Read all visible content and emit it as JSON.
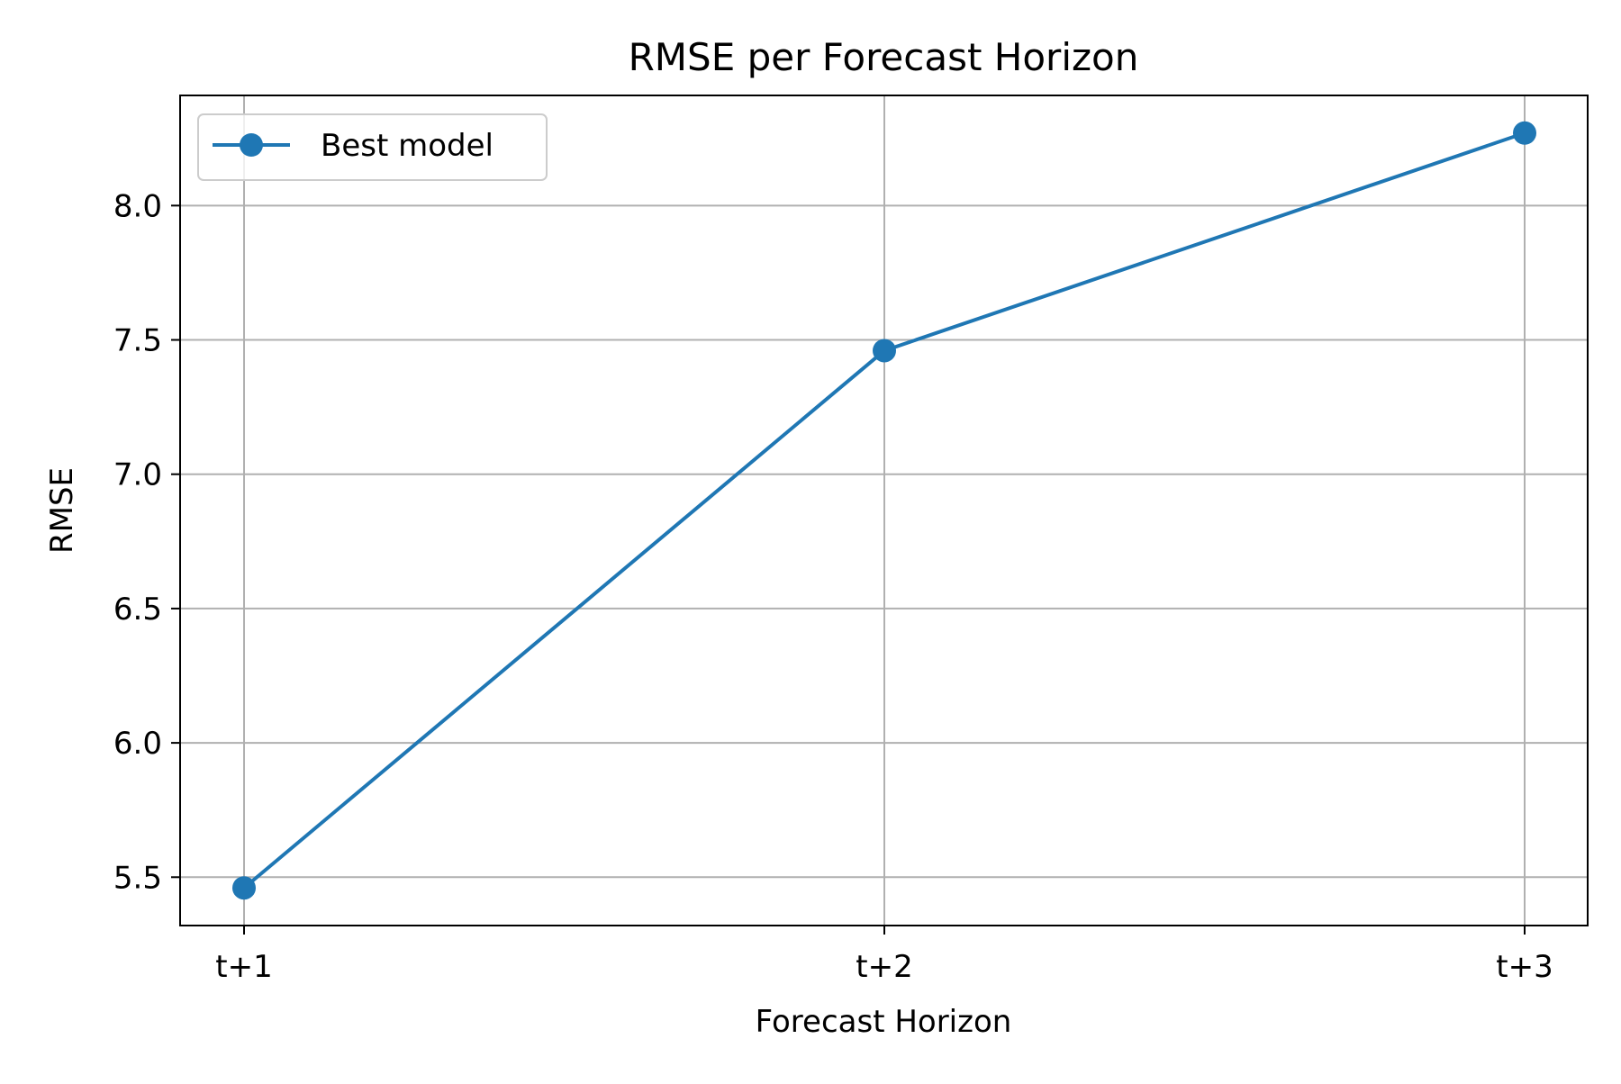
{
  "chart_data": {
    "type": "line",
    "title": "RMSE per Forecast Horizon",
    "xlabel": "Forecast Horizon",
    "ylabel": "RMSE",
    "categories": [
      "t+1",
      "t+2",
      "t+3"
    ],
    "series": [
      {
        "name": "Best model",
        "values": [
          5.46,
          7.46,
          8.27
        ],
        "color": "#1f77b4",
        "marker": "circle"
      }
    ],
    "ylim": [
      5.32,
      8.41
    ],
    "yticks": [
      "5.5",
      "6.0",
      "6.5",
      "7.0",
      "7.5",
      "8.0"
    ],
    "ytick_values": [
      5.5,
      6.0,
      6.5,
      7.0,
      7.5,
      8.0
    ],
    "grid": true,
    "legend": "upper-left"
  }
}
